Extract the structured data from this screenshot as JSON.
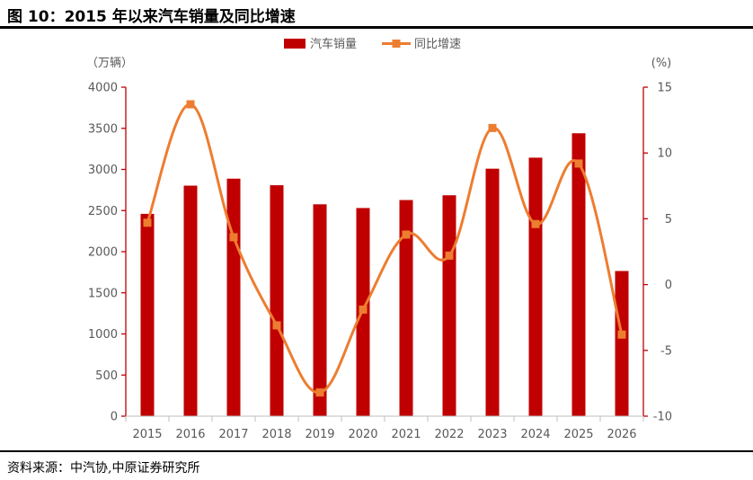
{
  "figure_title": "图 10：2015 年以来汽车销量及同比增速",
  "source": "资料来源：中汽协,中原证券研究所",
  "chart_data": {
    "type": "bar+line",
    "categories": [
      "2015",
      "2016",
      "2017",
      "2018",
      "2019",
      "2020",
      "2021",
      "2022",
      "2023",
      "2024",
      "2025",
      "2026"
    ],
    "series": [
      {
        "name": "汽车销量",
        "type": "bar",
        "axis": "left",
        "color": "#c00000",
        "values": [
          2460,
          2803,
          2888,
          2808,
          2576,
          2531,
          2628,
          2686,
          3009,
          3143,
          3440,
          1765
        ]
      },
      {
        "name": "同比增速",
        "type": "line",
        "axis": "right",
        "color": "#ed7d31",
        "values": [
          4.7,
          13.7,
          3.6,
          -3.1,
          -8.2,
          -1.9,
          3.8,
          2.2,
          11.9,
          4.6,
          9.2,
          -3.8
        ]
      }
    ],
    "left_axis": {
      "label": "（万辆）",
      "ylim": [
        0,
        4000
      ],
      "ticks": [
        "0",
        "500",
        "1000",
        "1500",
        "2000",
        "2500",
        "3000",
        "3500",
        "4000"
      ]
    },
    "right_axis": {
      "label": "(%)",
      "ylim": [
        -10,
        15
      ],
      "ticks": [
        "-10",
        "-5",
        "0",
        "5",
        "10",
        "15"
      ]
    },
    "legend_position": "top-center",
    "grid": false
  }
}
